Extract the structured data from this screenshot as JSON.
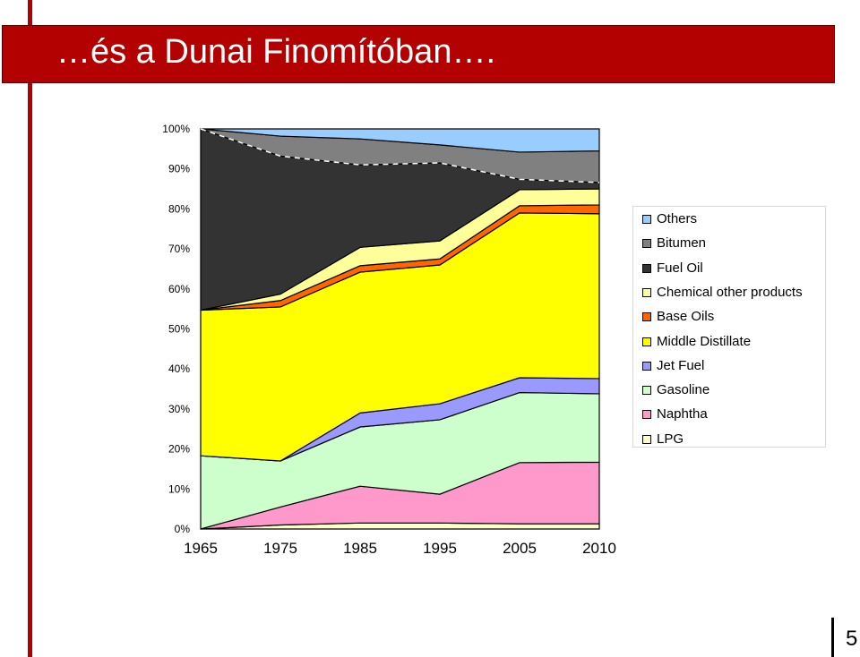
{
  "slide": {
    "title": "…és a Dunai Finomítóban….",
    "page_number": "5"
  },
  "colors": {
    "accent": "#b30000",
    "LPG": "#ffffcc",
    "Naphtha": "#ff99cc",
    "Gasoline": "#ccffcc",
    "Jet Fuel": "#9999ff",
    "Middle Distillate": "#ffff00",
    "Base Oils": "#ff6600",
    "Chemical other products": "#ffff99",
    "Fuel Oil": "#333333",
    "Bitumen": "#808080",
    "Others": "#99ccff"
  },
  "chart_data": {
    "type": "area",
    "stacked": true,
    "x": [
      "1965",
      "1975",
      "1985",
      "1995",
      "2005",
      "2010"
    ],
    "ylim": [
      0,
      100
    ],
    "ytick_labels": [
      "0%",
      "10%",
      "20%",
      "30%",
      "40%",
      "50%",
      "60%",
      "70%",
      "80%",
      "90%",
      "100%"
    ],
    "series": [
      {
        "name": "LPG",
        "values": [
          0,
          1,
          1.5,
          1.5,
          1.3,
          1.3
        ]
      },
      {
        "name": "Naphtha",
        "values": [
          0,
          4.5,
          9.2,
          7.2,
          15.3,
          15.4
        ]
      },
      {
        "name": "Gasoline",
        "values": [
          18.3,
          11.5,
          14.8,
          18.6,
          17.5,
          17.1
        ]
      },
      {
        "name": "Jet Fuel",
        "values": [
          0,
          0,
          3.5,
          4,
          3.7,
          3.8
        ]
      },
      {
        "name": "Middle Distillate",
        "values": [
          36.4,
          38.5,
          35.2,
          34.7,
          41.2,
          41.2
        ]
      },
      {
        "name": "Base Oils",
        "values": [
          0,
          1.6,
          1.6,
          1.5,
          1.8,
          2.2
        ]
      },
      {
        "name": "Chemical other products",
        "values": [
          0,
          1.6,
          4.6,
          4.5,
          4,
          4
        ]
      },
      {
        "name": "Fuel Oil",
        "values": [
          45.3,
          34.5,
          20.6,
          19.5,
          2.6,
          1.6
        ]
      },
      {
        "name": "Bitumen",
        "values": [
          0,
          5,
          6.5,
          4.5,
          6.8,
          7.9
        ]
      },
      {
        "name": "Others",
        "values": [
          0,
          1.8,
          2.5,
          4,
          5.8,
          5.5
        ]
      }
    ],
    "legend_order": [
      "Others",
      "Bitumen",
      "Fuel Oil",
      "Chemical other products",
      "Base Oils",
      "Middle Distillate",
      "Jet Fuel",
      "Gasoline",
      "Naphtha",
      "LPG"
    ],
    "legend_position": "right",
    "grid": false
  }
}
